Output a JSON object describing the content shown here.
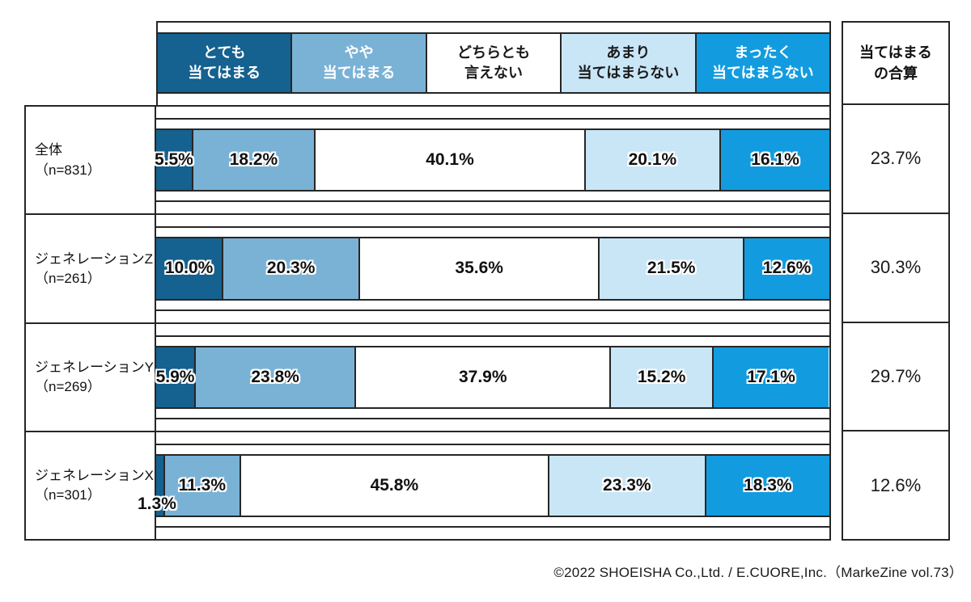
{
  "legend": {
    "items": [
      {
        "line1": "とても",
        "line2": "当てはまる",
        "color": "#15618f",
        "text_color": "#ffffff"
      },
      {
        "line1": "やや",
        "line2": "当てはまる",
        "color": "#7ab2d6",
        "text_color": "#ffffff"
      },
      {
        "line1": "どちらとも",
        "line2": "言えない",
        "color": "#ffffff",
        "text_color": "#1a1a1a"
      },
      {
        "line1": "あまり",
        "line2": "当てはまらない",
        "color": "#c9e6f7",
        "text_color": "#1a1a1a"
      },
      {
        "line1": "まったく",
        "line2": "当てはまらない",
        "color": "#129cdf",
        "text_color": "#ffffff"
      }
    ]
  },
  "summary": {
    "header_line1": "当てはまる",
    "header_line2": "の合算"
  },
  "rows": [
    {
      "label": "全体",
      "n": "（n=831）",
      "values": [
        "5.5%",
        "18.2%",
        "40.1%",
        "20.1%",
        "16.1%"
      ],
      "total": "23.7%"
    },
    {
      "label": "ジェネレーションZ",
      "n": "（n=261）",
      "values": [
        "10.0%",
        "20.3%",
        "35.6%",
        "21.5%",
        "12.6%"
      ],
      "total": "30.3%"
    },
    {
      "label": "ジェネレーションY",
      "n": "（n=269）",
      "values": [
        "5.9%",
        "23.8%",
        "37.9%",
        "15.2%",
        "17.1%"
      ],
      "total": "29.7%"
    },
    {
      "label": "ジェネレーションX",
      "n": "（n=301）",
      "values": [
        "1.3%",
        "11.3%",
        "45.8%",
        "23.3%",
        "18.3%"
      ],
      "total": "12.6%"
    }
  ],
  "footer": {
    "credit": "©2022 SHOEISHA Co.,Ltd. / E.CUORE,Inc.（MarkeZine vol.73）"
  },
  "chart_data": {
    "type": "bar",
    "subtype": "horizontal-stacked-100percent",
    "categories": [
      "全体（n=831）",
      "ジェネレーションZ（n=261）",
      "ジェネレーションY（n=269）",
      "ジェネレーションX（n=301）"
    ],
    "series": [
      {
        "name": "とても当てはまる",
        "color": "#15618f",
        "values": [
          5.5,
          10.0,
          5.9,
          1.3
        ]
      },
      {
        "name": "やや当てはまる",
        "color": "#7ab2d6",
        "values": [
          18.2,
          20.3,
          23.8,
          11.3
        ]
      },
      {
        "name": "どちらとも言えない",
        "color": "#ffffff",
        "values": [
          40.1,
          35.6,
          37.9,
          45.8
        ]
      },
      {
        "name": "あまり当てはまらない",
        "color": "#c9e6f7",
        "values": [
          20.1,
          21.5,
          15.2,
          23.3
        ]
      },
      {
        "name": "まったく当てはまらない",
        "color": "#129cdf",
        "values": [
          16.1,
          12.6,
          17.1,
          18.3
        ]
      }
    ],
    "totals_column": {
      "header": "当てはまるの合算",
      "values": [
        23.7,
        30.3,
        29.7,
        12.6
      ],
      "unit": "%"
    },
    "xlim": [
      0,
      100
    ],
    "unit": "%",
    "grid": false,
    "legend_position": "top",
    "source": "©2022 SHOEISHA Co.,Ltd. / E.CUORE,Inc.（MarkeZine vol.73）"
  }
}
